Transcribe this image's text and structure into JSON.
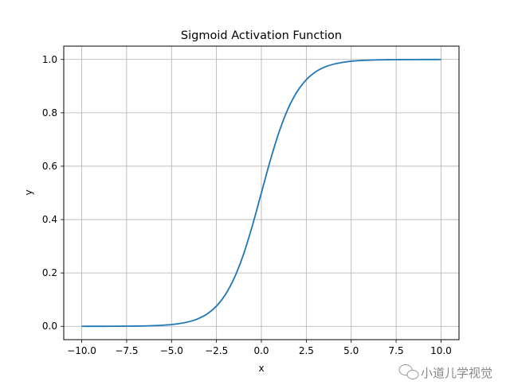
{
  "chart_data": {
    "type": "line",
    "title": "Sigmoid Activation Function",
    "xlabel": "x",
    "ylabel": "y",
    "xlim": [
      -11.0,
      11.0
    ],
    "ylim": [
      -0.05,
      1.05
    ],
    "grid": true,
    "xticks": [
      "−10.0",
      "−7.5",
      "−5.0",
      "−2.5",
      "0.0",
      "2.5",
      "5.0",
      "7.5",
      "10.0"
    ],
    "xtick_values": [
      -10,
      -7.5,
      -5,
      -2.5,
      0,
      2.5,
      5,
      7.5,
      10
    ],
    "yticks": [
      "0.0",
      "0.2",
      "0.4",
      "0.6",
      "0.8",
      "1.0"
    ],
    "ytick_values": [
      0,
      0.2,
      0.4,
      0.6,
      0.8,
      1.0
    ],
    "series": [
      {
        "color": "#1f77b4",
        "x": [
          -10,
          -9.5,
          -9,
          -8.5,
          -8,
          -7.5,
          -7,
          -6.5,
          -6,
          -5.5,
          -5,
          -4.5,
          -4,
          -3.5,
          -3,
          -2.5,
          -2,
          -1.5,
          -1,
          -0.5,
          0,
          0.5,
          1,
          1.5,
          2,
          2.5,
          3,
          3.5,
          4,
          4.5,
          5,
          5.5,
          6,
          6.5,
          7,
          7.5,
          8,
          8.5,
          9,
          9.5,
          10
        ],
        "y": [
          0.0,
          0.0001,
          0.0001,
          0.0002,
          0.0003,
          0.0006,
          0.0009,
          0.0015,
          0.0025,
          0.0041,
          0.0067,
          0.011,
          0.018,
          0.0293,
          0.0474,
          0.0759,
          0.1192,
          0.1824,
          0.2689,
          0.3775,
          0.5,
          0.6225,
          0.7311,
          0.8176,
          0.8808,
          0.9241,
          0.9526,
          0.9707,
          0.982,
          0.989,
          0.9933,
          0.9959,
          0.9975,
          0.9985,
          0.9991,
          0.9994,
          0.9997,
          0.9998,
          0.9999,
          0.9999,
          1.0
        ]
      }
    ]
  },
  "watermark": {
    "text": "小道儿学视觉",
    "icon": "wechat-icon"
  }
}
